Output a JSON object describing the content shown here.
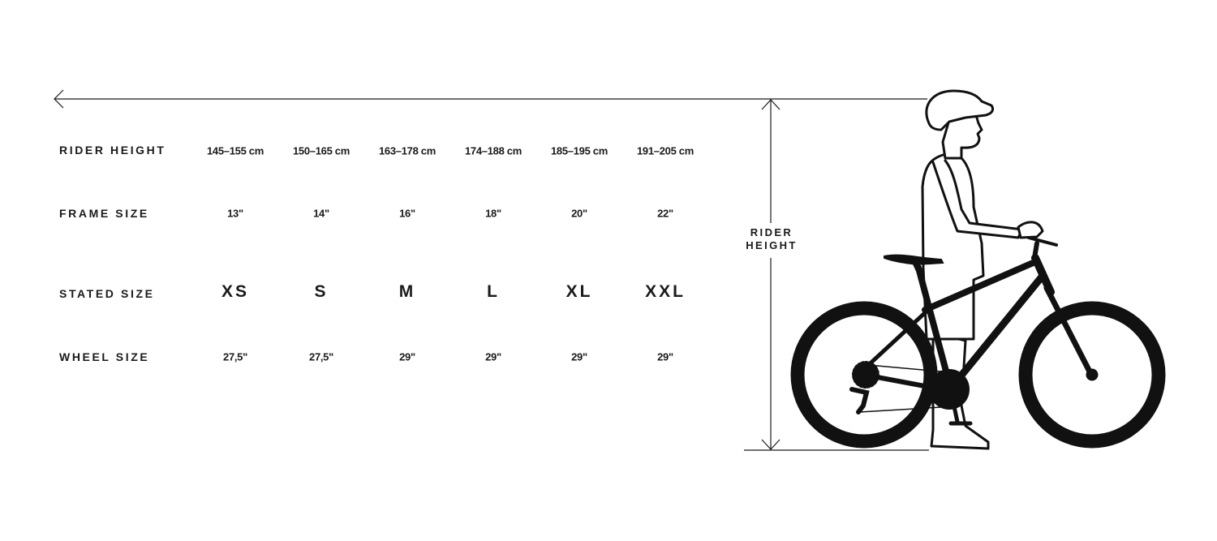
{
  "rows": [
    {
      "label": "RIDER HEIGHT",
      "values": [
        "145–155 cm",
        "150–165 cm",
        "163–178 cm",
        "174–188 cm",
        "185–195 cm",
        "191–205 cm"
      ]
    },
    {
      "label": "FRAME SIZE",
      "values": [
        "13\"",
        "14\"",
        "16\"",
        "18\"",
        "20\"",
        "22\""
      ]
    },
    {
      "label": "STATED SIZE",
      "values": [
        "XS",
        "S",
        "M",
        "L",
        "XL",
        "XXL"
      ]
    },
    {
      "label": "WHEEL SIZE",
      "values": [
        "27,5\"",
        "27,5\"",
        "29\"",
        "29\"",
        "29\"",
        "29\""
      ]
    }
  ],
  "illustration": {
    "label_line1": "RIDER",
    "label_line2": "HEIGHT",
    "icons": [
      "arrow-left-icon",
      "vertical-measure-arrow-icon",
      "rider-with-bike-illustration"
    ]
  }
}
